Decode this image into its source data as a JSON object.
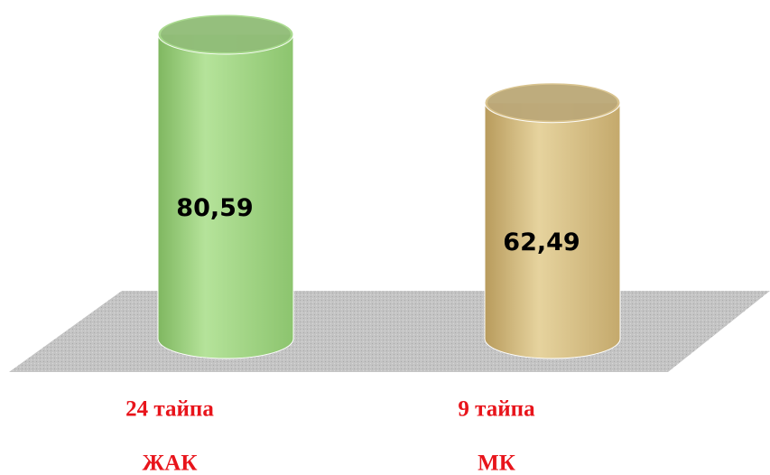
{
  "chart_data": {
    "type": "cylinder",
    "categories": [
      [
        "24 тайпа",
        "ЖАК"
      ],
      [
        "9 тайпа",
        "МК"
      ]
    ],
    "values": [
      80.59,
      62.49
    ],
    "value_labels": [
      "80,59",
      "62,49"
    ],
    "colors": [
      "#a6d98a",
      "#d8c18a"
    ],
    "label_color": "#e8141b"
  }
}
